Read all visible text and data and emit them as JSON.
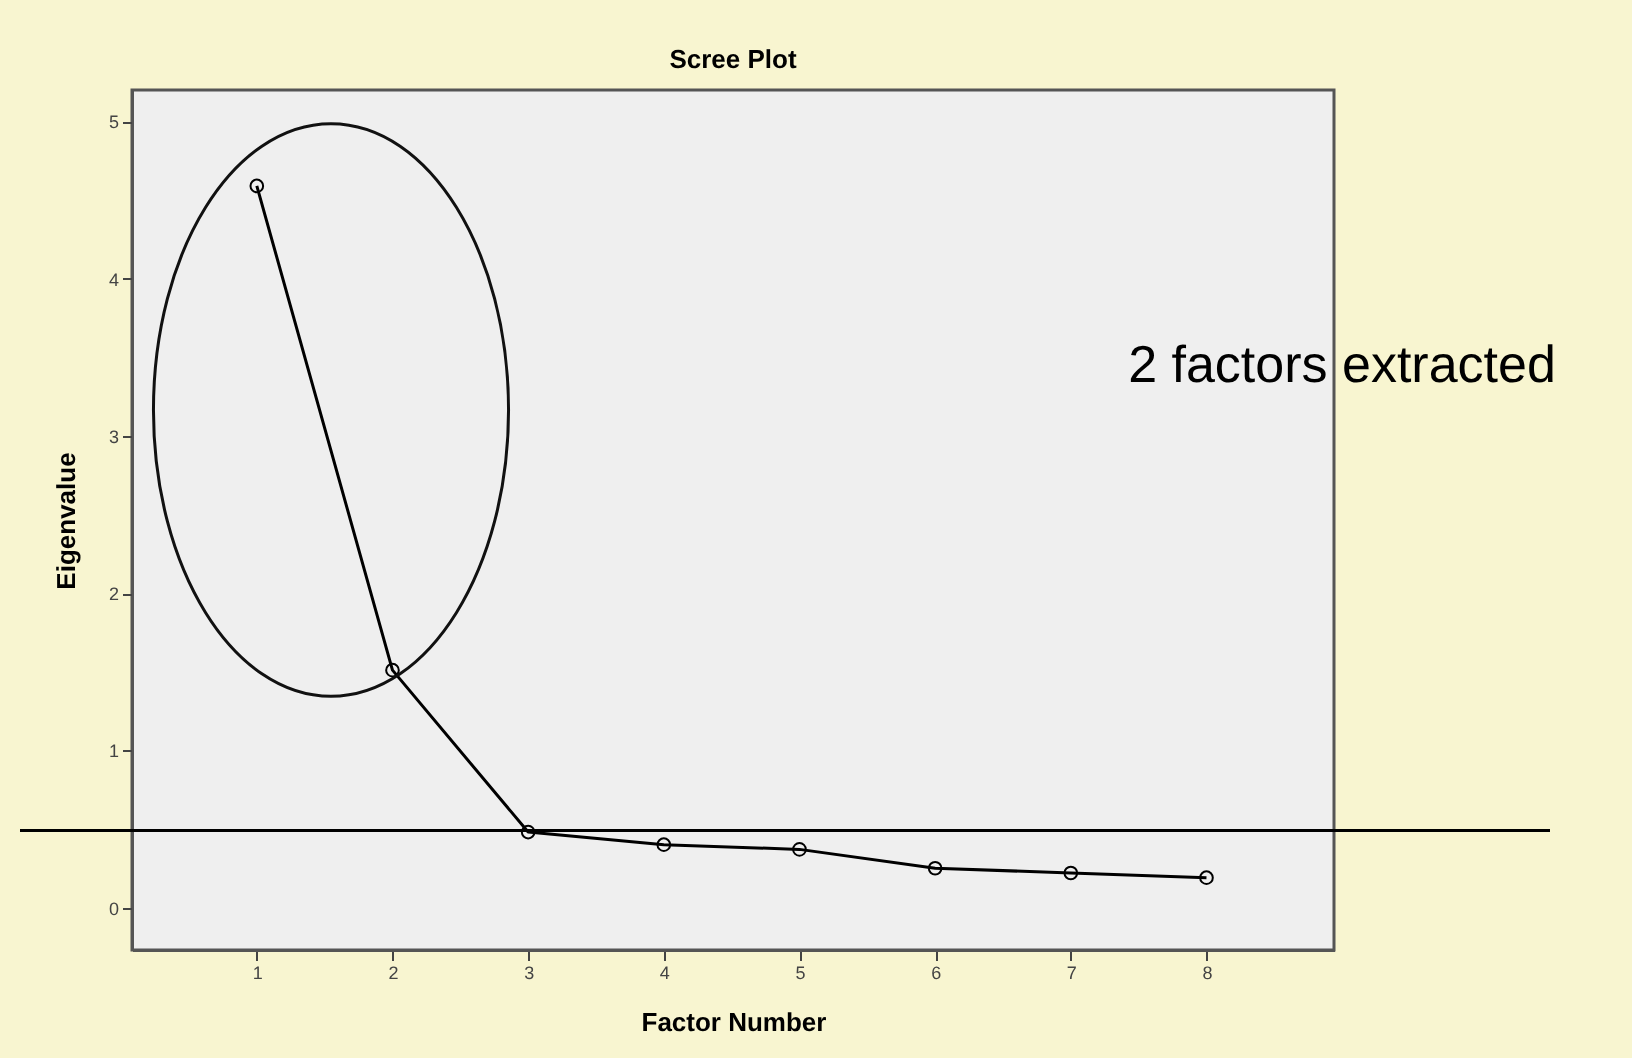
{
  "chart_data": {
    "type": "line",
    "title": "Scree Plot",
    "xlabel": "Factor Number",
    "ylabel": "Eigenvalue",
    "x": [
      1,
      2,
      3,
      4,
      5,
      6,
      7,
      8
    ],
    "series": [
      {
        "color": "#000000",
        "values": [
          4.59,
          1.51,
          0.48,
          0.4,
          0.37,
          0.25,
          0.22,
          0.19
        ]
      }
    ],
    "xlim": [
      0.08,
      8.94
    ],
    "xticks": [
      1,
      2,
      3,
      4,
      5,
      6,
      7,
      8
    ],
    "ylim": [
      -0.27,
      5.2
    ],
    "yticks": [
      0,
      1,
      2,
      3,
      4,
      5
    ],
    "grid": false,
    "marker": "circle",
    "line_style": "solid",
    "ref_lines": [
      {
        "axis": "y",
        "value": 0.49,
        "color": "#000000"
      }
    ],
    "annotations": [
      "2 factors extracted"
    ]
  }
}
